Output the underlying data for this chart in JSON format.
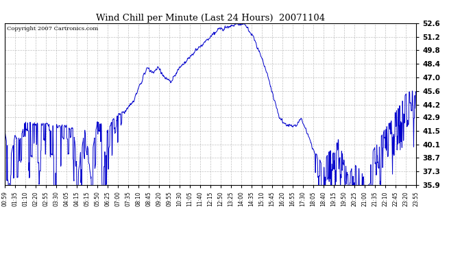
{
  "title": "Wind Chill per Minute (Last 24 Hours)  20071104",
  "copyright": "Copyright 2007 Cartronics.com",
  "ylabel_right": [
    "35.9",
    "37.3",
    "38.7",
    "40.1",
    "41.5",
    "42.9",
    "44.2",
    "45.6",
    "47.0",
    "48.4",
    "49.8",
    "51.2",
    "52.6"
  ],
  "ymin": 35.9,
  "ymax": 52.6,
  "line_color": "#0000cc",
  "background_color": "#ffffff",
  "grid_color": "#b0b0b0",
  "title_color": "#000000",
  "x_tick_labels": [
    "00:59",
    "01:35",
    "01:10",
    "02:20",
    "02:55",
    "03:30",
    "04:05",
    "04:15",
    "05:15",
    "05:50",
    "06:25",
    "07:00",
    "07:35",
    "08:10",
    "08:45",
    "09:20",
    "09:55",
    "10:30",
    "11:05",
    "11:40",
    "12:15",
    "12:50",
    "13:25",
    "14:00",
    "14:35",
    "15:10",
    "15:45",
    "16:20",
    "16:55",
    "17:30",
    "18:05",
    "18:40",
    "19:15",
    "19:50",
    "20:25",
    "21:00",
    "21:35",
    "22:10",
    "22:45",
    "23:20",
    "23:55"
  ]
}
